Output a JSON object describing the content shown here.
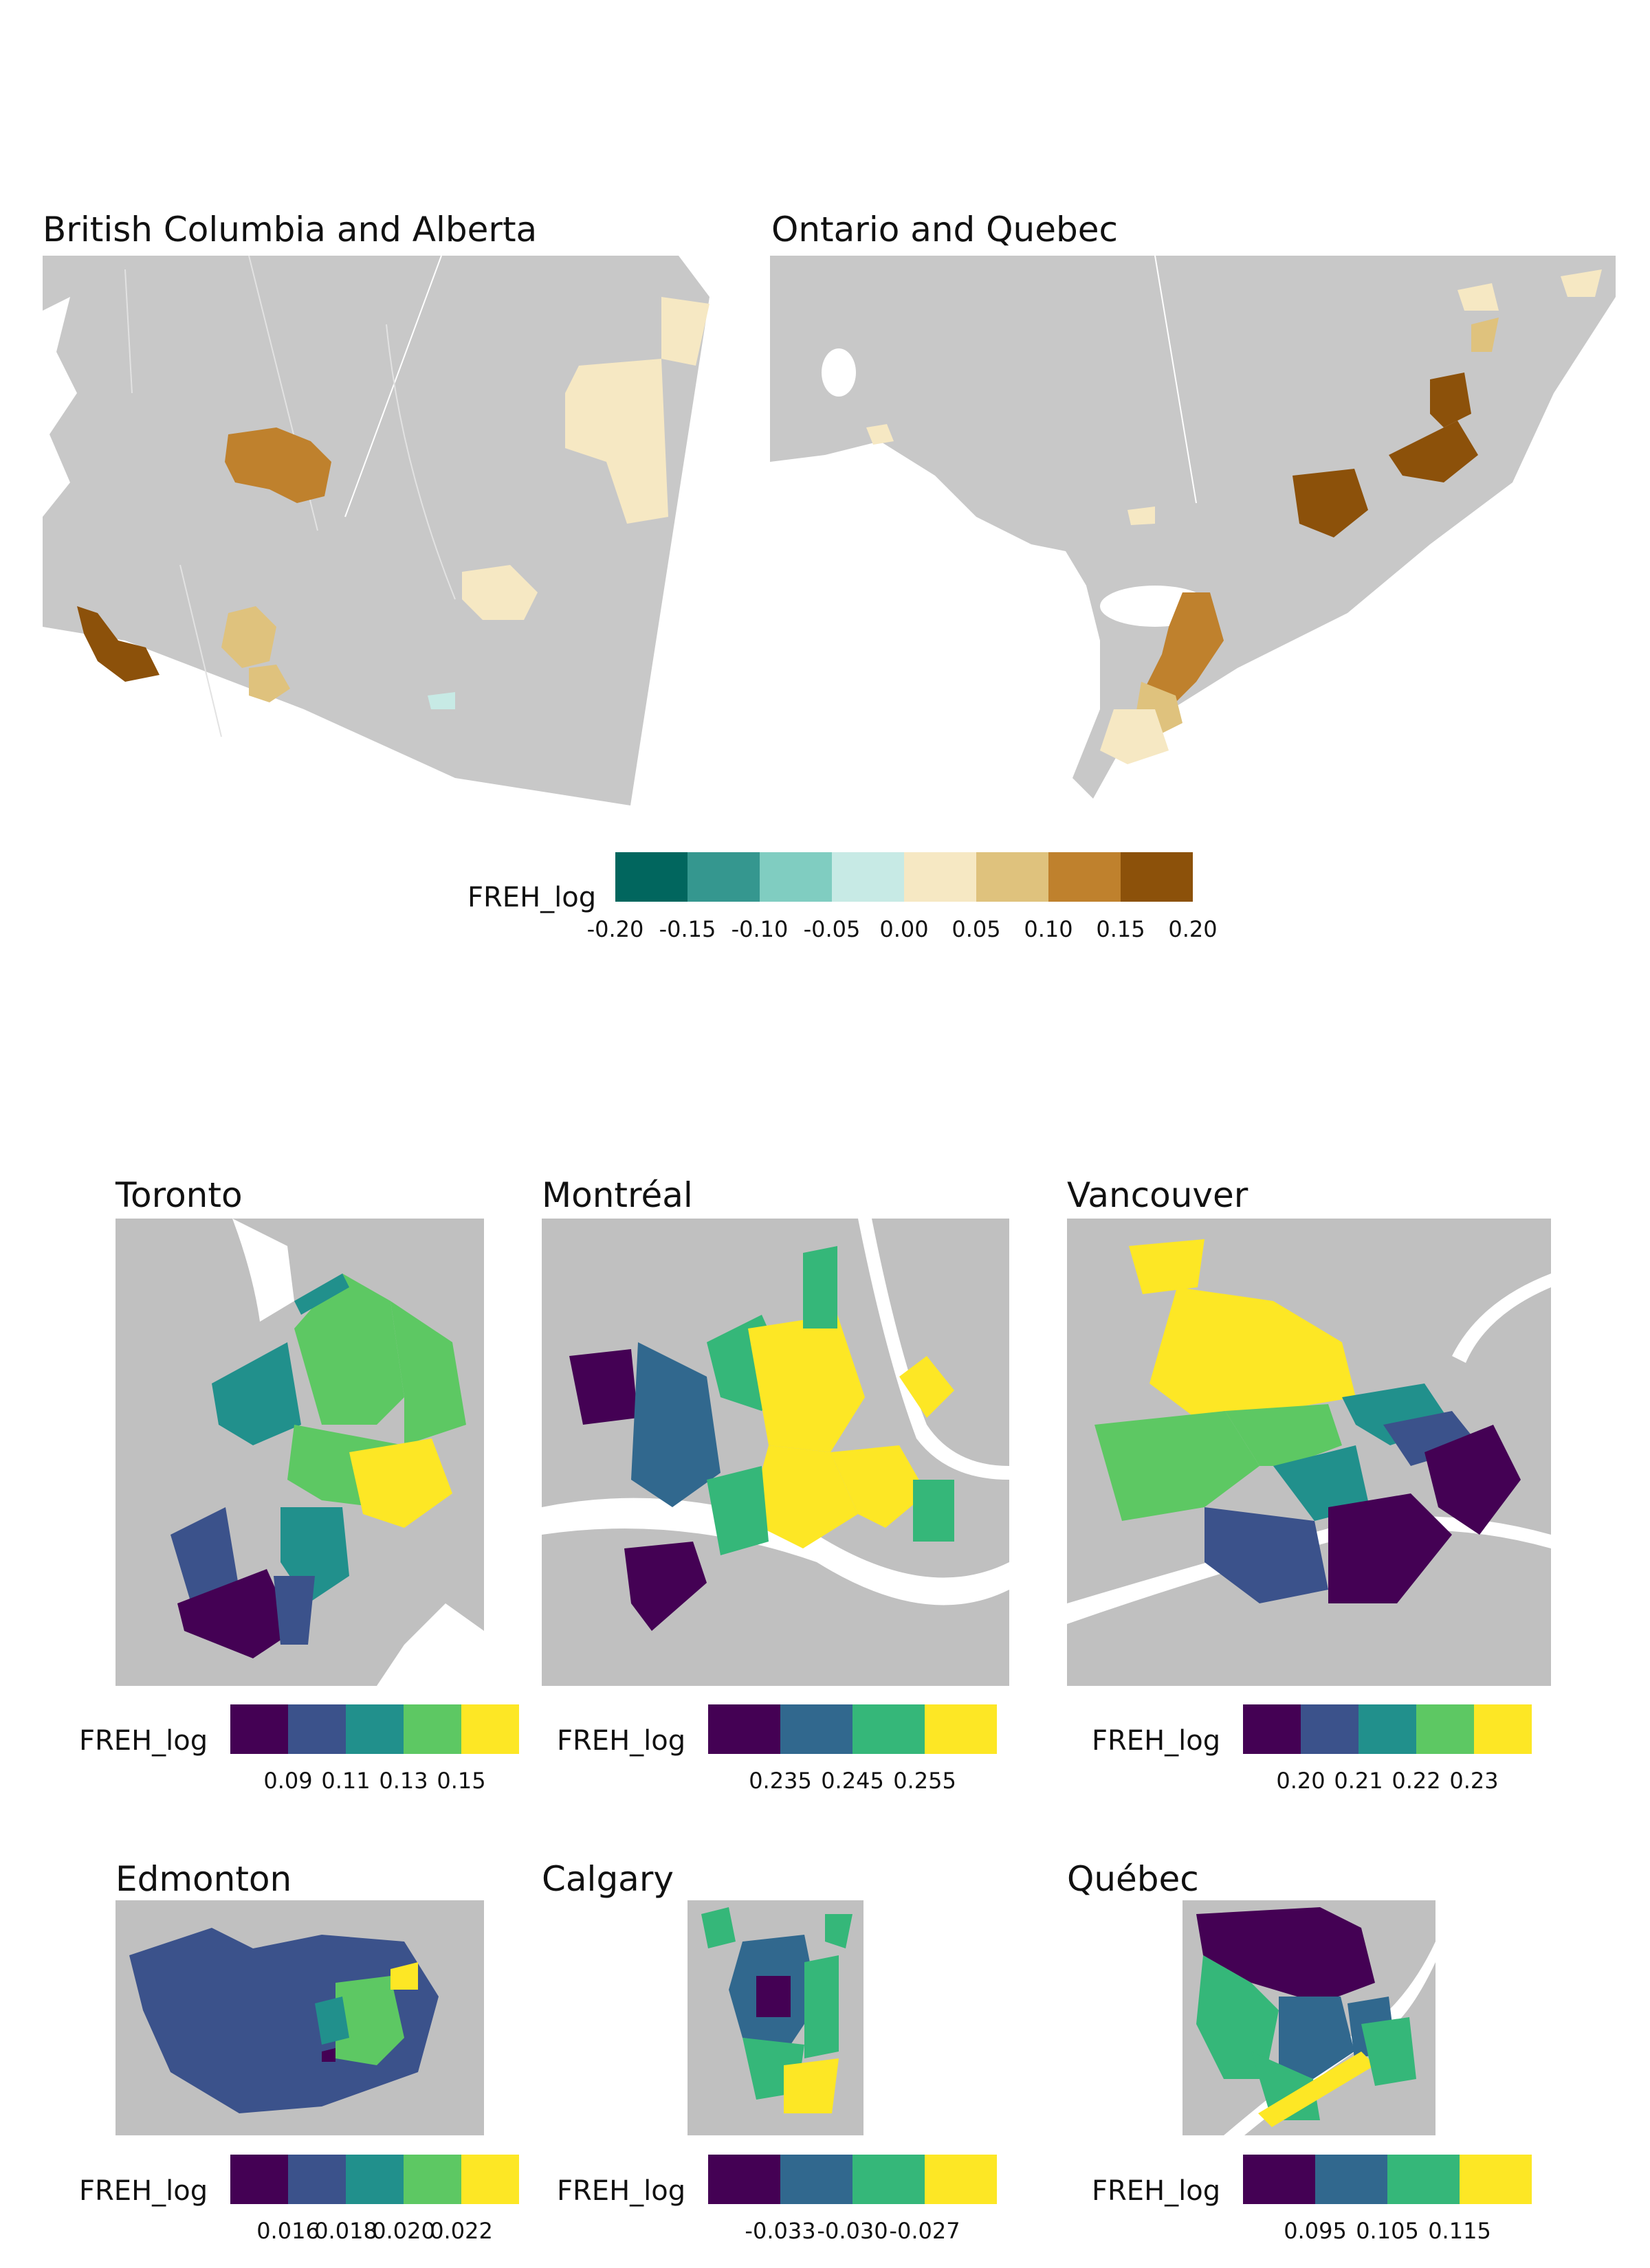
{
  "region_maps": [
    {
      "title": "British Columbia and Alberta"
    },
    {
      "title": "Ontario and Quebec"
    }
  ],
  "region_legend": {
    "title": "FREH_log",
    "ticks": [
      "-0.20",
      "-0.15",
      "-0.10",
      "-0.05",
      "0.00",
      "0.05",
      "0.10",
      "0.15",
      "0.20"
    ],
    "colors": [
      "#01665e",
      "#35978f",
      "#80cdc1",
      "#c7eae5",
      "#f6e8c3",
      "#dfc27d",
      "#bf812d",
      "#8c510a"
    ]
  },
  "city_legend_colors": [
    "#440154",
    "#3b528b",
    "#21908c",
    "#5dc863",
    "#fde725"
  ],
  "city_legend_colors_4": [
    "#440154",
    "#31688e",
    "#35b779",
    "#fde725"
  ],
  "cities": [
    {
      "name": "Toronto",
      "legend_title": "FREH_log",
      "ticks": [
        "0.09",
        "0.11",
        "0.13",
        "0.15"
      ]
    },
    {
      "name": "Montréal",
      "legend_title": "FREH_log",
      "ticks": [
        "0.235",
        "0.245",
        "0.255"
      ]
    },
    {
      "name": "Vancouver",
      "legend_title": "FREH_log",
      "ticks": [
        "0.20",
        "0.21",
        "0.22",
        "0.23"
      ]
    },
    {
      "name": "Edmonton",
      "legend_title": "FREH_log",
      "ticks": [
        "0.016",
        "0.018",
        "0.020",
        "0.022"
      ]
    },
    {
      "name": "Calgary",
      "legend_title": "FREH_log",
      "ticks": [
        "-0.033",
        "-0.030",
        "-0.027"
      ]
    },
    {
      "name": "Québec",
      "legend_title": "FREH_log",
      "ticks": [
        "0.095",
        "0.105",
        "0.115"
      ]
    }
  ]
}
